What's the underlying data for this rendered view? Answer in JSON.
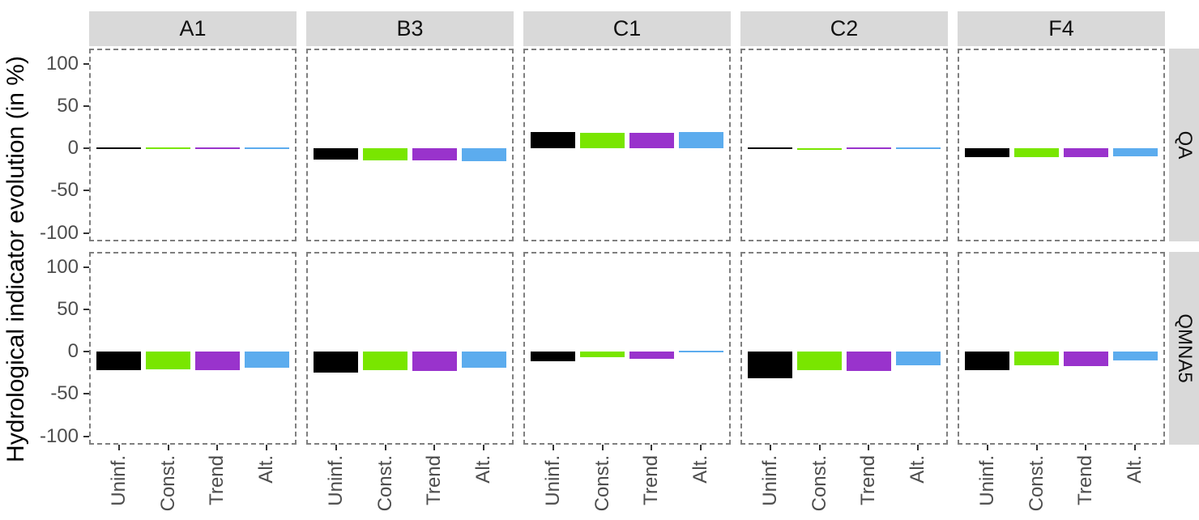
{
  "figure": {
    "y_axis_title": "Hydrological indicator evolution (in %)",
    "strip_bg_color": "#d9d9d9",
    "panel_border_color": "#7f7f7f",
    "tick_label_color": "#4d4d4d"
  },
  "chart_data": {
    "type": "bar",
    "title": "",
    "xlabel": "",
    "ylabel": "Hydrological indicator evolution (in %)",
    "facet_columns": [
      "A1",
      "B3",
      "C1",
      "C2",
      "F4"
    ],
    "facet_rows": [
      "QA",
      "QMNA5"
    ],
    "categories": [
      "Uninf.",
      "Const.",
      "Trend",
      "Alt."
    ],
    "series_colors": {
      "Uninf.": "#000000",
      "Const.": "#79E600",
      "Trend": "#9933CC",
      "Alt.": "#5CACEE"
    },
    "ylim": [
      -100,
      100
    ],
    "y_tick_values": [
      100,
      50,
      0,
      -50,
      -100
    ],
    "y_tick_labels": [
      "100",
      "50",
      "0",
      "-50",
      "-100"
    ],
    "grid": false,
    "legend_position": "none",
    "values_pct": {
      "QA": {
        "A1": [
          -0.5,
          -1,
          -1,
          -0.5
        ],
        "B3": [
          -13,
          -14,
          -14,
          -15
        ],
        "C1": [
          19,
          18,
          18,
          19
        ],
        "C2": [
          -0.5,
          -2,
          -1,
          -1
        ],
        "F4": [
          -10,
          -10,
          -10,
          -9
        ]
      },
      "QMNA5": {
        "A1": [
          -22,
          -21,
          -22,
          -19
        ],
        "B3": [
          -25,
          -22,
          -23,
          -19
        ],
        "C1": [
          -11,
          -7,
          -8,
          1
        ],
        "C2": [
          -31,
          -22,
          -23,
          -16
        ],
        "F4": [
          -22,
          -16,
          -17,
          -10
        ]
      }
    }
  }
}
